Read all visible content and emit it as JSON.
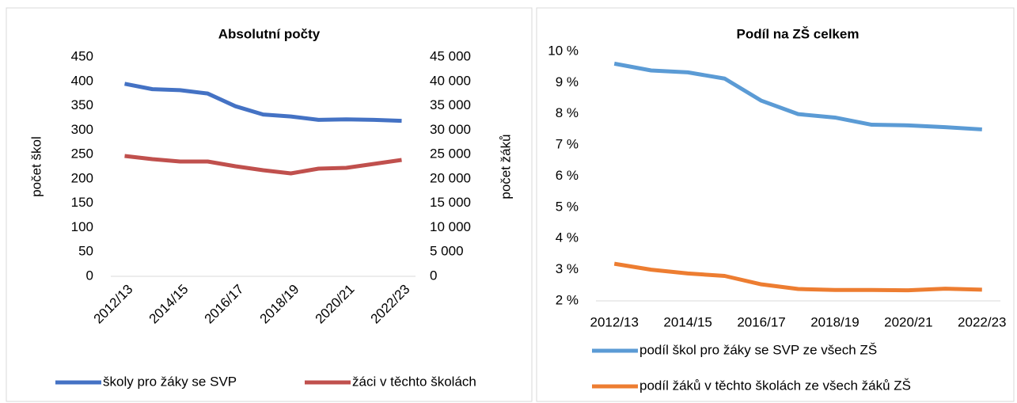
{
  "chart_data": [
    {
      "type": "line",
      "title": "Absolutní počty",
      "ylabel": "počet škol",
      "y2label": "počet žáků",
      "categories": [
        "2012/13",
        null,
        "2014/15",
        null,
        "2016/17",
        null,
        "2018/19",
        null,
        "2020/21",
        null,
        "2022/23"
      ],
      "ylim": [
        0,
        450
      ],
      "yticks": [
        0,
        50,
        100,
        150,
        200,
        250,
        300,
        350,
        400,
        450
      ],
      "y2lim": [
        0,
        45000
      ],
      "y2ticks": [
        0,
        {
          "value": 5000,
          "label": "5 000"
        },
        {
          "value": 10000,
          "label": "10 000"
        },
        {
          "value": 15000,
          "label": "15 000"
        },
        {
          "value": 20000,
          "label": "20 000"
        },
        {
          "value": 25000,
          "label": "25 000"
        },
        {
          "value": 30000,
          "label": "30 000"
        },
        {
          "value": 35000,
          "label": "35 000"
        },
        {
          "value": 40000,
          "label": "40 000"
        },
        {
          "value": 45000,
          "label": "45 000"
        }
      ],
      "grid": false,
      "legend": "bottom",
      "series": [
        {
          "name": "školy pro žáky se SVP",
          "color": "#4472c4",
          "values": [
            395,
            384,
            382,
            375,
            349,
            332,
            328,
            321,
            322,
            321,
            319
          ]
        },
        {
          "name": "žáci v těchto školách",
          "color": "#c0504d",
          "axis": "y2",
          "values": [
            24700,
            24040,
            23560,
            23560,
            22580,
            21770,
            21120,
            22090,
            22260,
            23070,
            23880
          ]
        }
      ]
    },
    {
      "type": "line",
      "title": "Podíl na ZŠ celkem",
      "categories": [
        "2012/13",
        null,
        "2014/15",
        null,
        "2016/17",
        null,
        "2018/19",
        null,
        "2020/21",
        null,
        "2022/23"
      ],
      "ylim": [
        2,
        10
      ],
      "yticks": [
        {
          "value": 2,
          "label": "2 %"
        },
        {
          "value": 3,
          "label": "3 %"
        },
        {
          "value": 4,
          "label": "4 %"
        },
        {
          "value": 5,
          "label": "5 %"
        },
        {
          "value": 6,
          "label": "6 %"
        },
        {
          "value": 7,
          "label": "7 %"
        },
        {
          "value": 8,
          "label": "8 %"
        },
        {
          "value": 9,
          "label": "9 %"
        },
        {
          "value": 10,
          "label": "10 %"
        }
      ],
      "grid": false,
      "legend": "bottom",
      "series": [
        {
          "name": "podíl škol pro žáky se SVP ze všech ZŠ",
          "color": "#5b9bd5",
          "values": [
            9.61,
            9.39,
            9.33,
            9.13,
            8.42,
            7.99,
            7.88,
            7.65,
            7.63,
            7.57,
            7.5
          ]
        },
        {
          "name": "podíl žáků v těchto školách ze všech žáků ZŠ",
          "color": "#ed7d31",
          "values": [
            3.19,
            3.0,
            2.88,
            2.8,
            2.53,
            2.38,
            2.35,
            2.35,
            2.34,
            2.39,
            2.36
          ]
        }
      ]
    }
  ]
}
